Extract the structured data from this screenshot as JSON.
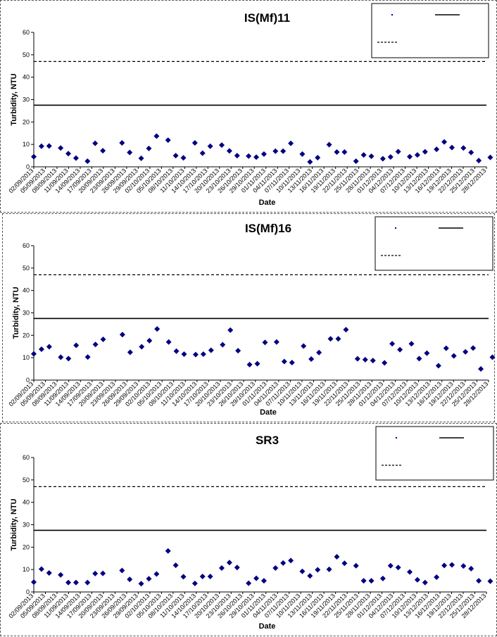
{
  "chart_data": [
    {
      "type": "scatter",
      "title": "IS(Mf)11",
      "xlabel": "Date",
      "ylabel": "Turbidity, NTU",
      "ylim": [
        0,
        60
      ],
      "yticks": [
        0,
        10,
        20,
        30,
        40,
        50,
        60
      ],
      "xlim": [
        "2013-09-02",
        "2013-12-29"
      ],
      "xtick_labels": [
        "02/09/2013",
        "05/09/2013",
        "08/09/2013",
        "11/09/2013",
        "14/09/2013",
        "17/09/2013",
        "20/09/2013",
        "23/09/2013",
        "26/09/2013",
        "29/09/2013",
        "02/10/2013",
        "05/10/2013",
        "08/10/2013",
        "11/10/2013",
        "14/10/2013",
        "17/10/2013",
        "20/10/2013",
        "23/10/2013",
        "26/10/2013",
        "29/10/2013",
        "01/11/2013",
        "04/11/2013",
        "07/11/2013",
        "10/11/2013",
        "13/11/2013",
        "16/11/2013",
        "19/11/2013",
        "22/11/2013",
        "25/11/2013",
        "28/11/2013",
        "01/12/2013",
        "04/12/2013",
        "07/12/2013",
        "10/12/2013",
        "13/12/2013",
        "16/12/2013",
        "19/12/2013",
        "22/12/2013",
        "25/12/2013",
        "28/12/2013"
      ],
      "reference_lines": [
        {
          "y": 27.5,
          "style": "solid"
        },
        {
          "y": 47,
          "style": "dashed"
        }
      ],
      "legend": {
        "placement": "top-right",
        "grid": false
      },
      "series": [
        {
          "marker": "diamond",
          "color": "#000080",
          "x": [
            "2013-09-02",
            "2013-09-04",
            "2013-09-06",
            "2013-09-09",
            "2013-09-11",
            "2013-09-13",
            "2013-09-16",
            "2013-09-18",
            "2013-09-20",
            "2013-09-25",
            "2013-09-27",
            "2013-09-30",
            "2013-10-02",
            "2013-10-04",
            "2013-10-07",
            "2013-10-09",
            "2013-10-11",
            "2013-10-14",
            "2013-10-16",
            "2013-10-18",
            "2013-10-21",
            "2013-10-23",
            "2013-10-25",
            "2013-10-28",
            "2013-10-30",
            "2013-11-01",
            "2013-11-04",
            "2013-11-06",
            "2013-11-08",
            "2013-11-11",
            "2013-11-13",
            "2013-11-15",
            "2013-11-18",
            "2013-11-20",
            "2013-11-22",
            "2013-11-25",
            "2013-11-27",
            "2013-11-29",
            "2013-12-02",
            "2013-12-04",
            "2013-12-06",
            "2013-12-09",
            "2013-12-11",
            "2013-12-13",
            "2013-12-16",
            "2013-12-18",
            "2013-12-20",
            "2013-12-23",
            "2013-12-25",
            "2013-12-27",
            "2013-12-30"
          ],
          "y": [
            4.5,
            9.2,
            9.3,
            8.4,
            5.9,
            3.9,
            2.5,
            10.5,
            7.2,
            10.7,
            6.4,
            3.8,
            8.2,
            13.7,
            11.9,
            5.0,
            4.0,
            10.7,
            6.1,
            9.2,
            9.7,
            7.1,
            5.0,
            4.8,
            4.3,
            5.7,
            7.0,
            7.0,
            10.5,
            5.7,
            2.2,
            4.1,
            9.9,
            6.6,
            6.6,
            2.5,
            5.3,
            4.7,
            3.6,
            4.4,
            6.8,
            4.5,
            5.3,
            6.7,
            7.8,
            11.1,
            8.6,
            8.4,
            6.4,
            2.8,
            4.2
          ]
        }
      ]
    },
    {
      "type": "scatter",
      "title": "IS(Mf)16",
      "xlabel": "Date",
      "ylabel": "Turbidity, NTU",
      "ylim": [
        0,
        60
      ],
      "yticks": [
        0,
        10,
        20,
        30,
        40,
        50,
        60
      ],
      "xlim": [
        "2013-09-02",
        "2013-12-29"
      ],
      "xtick_labels": [
        "02/09/2013",
        "05/09/2013",
        "08/09/2013",
        "11/09/2013",
        "14/09/2013",
        "17/09/2013",
        "20/09/2013",
        "23/09/2013",
        "26/09/2013",
        "29/09/2013",
        "02/10/2013",
        "05/10/2013",
        "08/10/2013",
        "11/10/2013",
        "14/10/2013",
        "17/10/2013",
        "20/10/2013",
        "23/10/2013",
        "26/10/2013",
        "29/10/2013",
        "01/11/2013",
        "04/11/2013",
        "07/11/2013",
        "10/11/2013",
        "13/11/2013",
        "16/11/2013",
        "19/11/2013",
        "22/11/2013",
        "25/11/2013",
        "28/11/2013",
        "01/12/2013",
        "04/12/2013",
        "07/12/2013",
        "10/12/2013",
        "13/12/2013",
        "16/12/2013",
        "19/12/2013",
        "22/12/2013",
        "25/12/2013",
        "28/12/2013"
      ],
      "reference_lines": [
        {
          "y": 27.5,
          "style": "solid"
        },
        {
          "y": 47,
          "style": "dashed"
        }
      ],
      "legend": {
        "placement": "top-right",
        "grid": false
      },
      "series": [
        {
          "marker": "diamond",
          "color": "#000080",
          "x": [
            "2013-09-02",
            "2013-09-04",
            "2013-09-06",
            "2013-09-09",
            "2013-09-11",
            "2013-09-13",
            "2013-09-16",
            "2013-09-18",
            "2013-09-20",
            "2013-09-25",
            "2013-09-27",
            "2013-09-30",
            "2013-10-02",
            "2013-10-04",
            "2013-10-07",
            "2013-10-09",
            "2013-10-11",
            "2013-10-14",
            "2013-10-16",
            "2013-10-18",
            "2013-10-21",
            "2013-10-23",
            "2013-10-25",
            "2013-10-28",
            "2013-10-30",
            "2013-11-01",
            "2013-11-04",
            "2013-11-06",
            "2013-11-08",
            "2013-11-11",
            "2013-11-13",
            "2013-11-15",
            "2013-11-18",
            "2013-11-20",
            "2013-11-22",
            "2013-11-25",
            "2013-11-27",
            "2013-11-29",
            "2013-12-02",
            "2013-12-04",
            "2013-12-06",
            "2013-12-09",
            "2013-12-11",
            "2013-12-13",
            "2013-12-16",
            "2013-12-18",
            "2013-12-20",
            "2013-12-23",
            "2013-12-25",
            "2013-12-27",
            "2013-12-30"
          ],
          "y": [
            11.7,
            13.8,
            14.9,
            10.2,
            9.6,
            15.5,
            10.3,
            15.9,
            18.2,
            20.3,
            12.4,
            14.9,
            17.6,
            22.8,
            17.0,
            12.9,
            11.6,
            11.4,
            11.6,
            13.3,
            15.8,
            22.3,
            13.1,
            6.9,
            7.3,
            16.8,
            17.0,
            8.3,
            7.8,
            15.2,
            9.4,
            12.3,
            18.4,
            18.4,
            22.5,
            9.5,
            9.1,
            8.7,
            7.7,
            16.2,
            13.6,
            16.2,
            9.6,
            12.0,
            6.4,
            14.2,
            10.8,
            12.6,
            14.3,
            5.0,
            10.2
          ]
        }
      ]
    },
    {
      "type": "scatter",
      "title": "SR3",
      "xlabel": "Date",
      "ylabel": "Turbidity, NTU",
      "ylim": [
        0,
        60
      ],
      "yticks": [
        0,
        10,
        20,
        30,
        40,
        50,
        60
      ],
      "xlim": [
        "2013-09-02",
        "2013-12-29"
      ],
      "xtick_labels": [
        "02/09/2013",
        "05/09/2013",
        "08/09/2013",
        "11/09/2013",
        "14/09/2013",
        "17/09/2013",
        "20/09/2013",
        "23/09/2013",
        "26/09/2013",
        "29/09/2013",
        "02/10/2013",
        "05/10/2013",
        "08/10/2013",
        "11/10/2013",
        "14/10/2013",
        "17/10/2013",
        "20/10/2013",
        "23/10/2013",
        "26/10/2013",
        "29/10/2013",
        "01/11/2013",
        "04/11/2013",
        "07/11/2013",
        "10/11/2013",
        "13/11/2013",
        "16/11/2013",
        "19/11/2013",
        "22/11/2013",
        "25/11/2013",
        "28/11/2013",
        "01/12/2013",
        "04/12/2013",
        "07/12/2013",
        "10/12/2013",
        "13/12/2013",
        "16/12/2013",
        "19/12/2013",
        "22/12/2013",
        "25/12/2013",
        "28/12/2013"
      ],
      "reference_lines": [
        {
          "y": 27.5,
          "style": "solid"
        },
        {
          "y": 47,
          "style": "dashed"
        }
      ],
      "legend": {
        "placement": "top-right",
        "grid": false
      },
      "series": [
        {
          "marker": "diamond",
          "color": "#000080",
          "x": [
            "2013-09-02",
            "2013-09-04",
            "2013-09-06",
            "2013-09-09",
            "2013-09-11",
            "2013-09-13",
            "2013-09-16",
            "2013-09-18",
            "2013-09-20",
            "2013-09-25",
            "2013-09-27",
            "2013-09-30",
            "2013-10-02",
            "2013-10-04",
            "2013-10-07",
            "2013-10-09",
            "2013-10-11",
            "2013-10-14",
            "2013-10-16",
            "2013-10-18",
            "2013-10-21",
            "2013-10-23",
            "2013-10-25",
            "2013-10-28",
            "2013-10-30",
            "2013-11-01",
            "2013-11-04",
            "2013-11-06",
            "2013-11-08",
            "2013-11-11",
            "2013-11-13",
            "2013-11-15",
            "2013-11-18",
            "2013-11-20",
            "2013-11-22",
            "2013-11-25",
            "2013-11-27",
            "2013-11-29",
            "2013-12-02",
            "2013-12-04",
            "2013-12-06",
            "2013-12-09",
            "2013-12-11",
            "2013-12-13",
            "2013-12-16",
            "2013-12-18",
            "2013-12-20",
            "2013-12-23",
            "2013-12-25",
            "2013-12-27",
            "2013-12-30"
          ],
          "y": [
            4.4,
            10.2,
            8.5,
            7.6,
            4.2,
            4.2,
            4.2,
            8.2,
            8.3,
            9.6,
            5.6,
            3.7,
            5.9,
            8.0,
            18.3,
            11.9,
            6.8,
            3.8,
            6.9,
            6.9,
            10.7,
            13.1,
            10.9,
            3.9,
            6.1,
            5.0,
            10.7,
            12.9,
            14.0,
            9.2,
            7.2,
            9.9,
            10.1,
            15.7,
            12.8,
            11.7,
            5.0,
            5.0,
            6.0,
            11.7,
            10.9,
            8.9,
            5.4,
            4.2,
            6.6,
            11.8,
            12.1,
            11.6,
            10.4,
            5.0,
            4.8
          ]
        }
      ]
    }
  ]
}
